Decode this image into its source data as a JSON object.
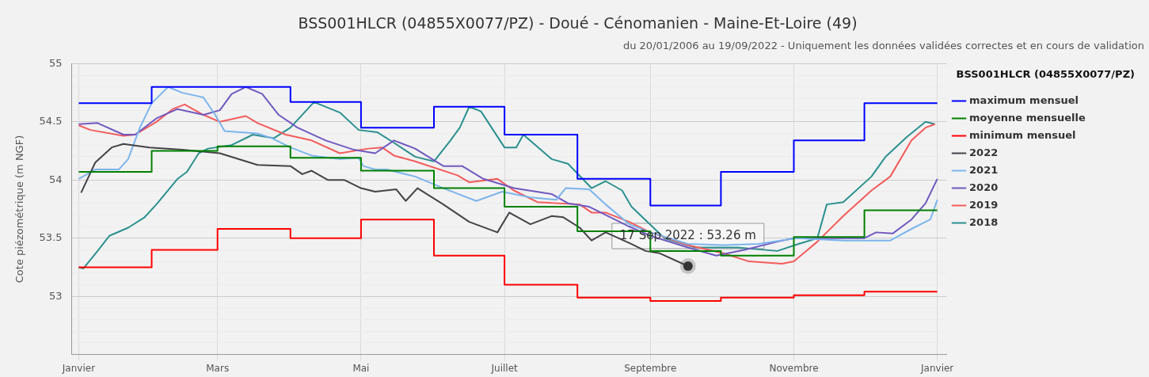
{
  "chart_data": {
    "type": "line",
    "title": "BSS001HLCR (04855X0077/PZ) - Doué - Cénomanien - Maine-Et-Loire (49)",
    "subtitle": "du 20/01/2006 au 19/09/2022 - Uniquement les données validées correctes et en cours de validation",
    "ylabel": "Cote piézométrique (m NGF)",
    "legend_title": "BSS001HLCR (04855X0077/PZ)",
    "legend": "right",
    "grid": true,
    "marker": "none",
    "line_style": "solid",
    "xlim": [
      "2021-12-29",
      "2023-01-05"
    ],
    "xticks": [
      {
        "value": "2022-01-01",
        "label": "Janvier"
      },
      {
        "value": "2022-03-01",
        "label": "Mars"
      },
      {
        "value": "2022-05-01",
        "label": "Mai"
      },
      {
        "value": "2022-07-01",
        "label": "Juillet"
      },
      {
        "value": "2022-09-01",
        "label": "Septembre"
      },
      {
        "value": "2022-11-01",
        "label": "Novembre"
      },
      {
        "value": "2023-01-01",
        "label": "Janvier"
      }
    ],
    "ylim": [
      52.5,
      55
    ],
    "yticks": [
      {
        "value": 52.6,
        "label": null
      },
      {
        "value": 52.7,
        "label": null
      },
      {
        "value": 52.8,
        "label": null
      },
      {
        "value": 52.9,
        "label": null
      },
      53,
      {
        "value": 53.1,
        "label": null
      },
      {
        "value": 53.2,
        "label": null
      },
      {
        "value": 53.3,
        "label": null
      },
      {
        "value": 53.4,
        "label": null
      },
      53.5,
      {
        "value": 53.6,
        "label": null
      },
      {
        "value": 53.7,
        "label": null
      },
      {
        "value": 53.8,
        "label": null
      },
      {
        "value": 53.9,
        "label": null
      },
      54,
      {
        "value": 54.1,
        "label": null
      },
      {
        "value": 54.2,
        "label": null
      },
      {
        "value": 54.3,
        "label": null
      },
      {
        "value": 54.4,
        "label": null
      },
      54.5,
      {
        "value": 54.6,
        "label": null
      },
      {
        "value": 54.7,
        "label": null
      },
      {
        "value": 54.8,
        "label": null
      },
      {
        "value": 54.9,
        "label": null
      },
      55
    ],
    "annotations": [
      {
        "text": "17 Sep 2022 : 53.26 m",
        "x": "2022-09-17",
        "y": 53.26
      }
    ],
    "series": [
      {
        "name": "maximum mensuel",
        "type": "step",
        "color": "#0000ff",
        "x": [
          "2022-01-01",
          "2022-02-01",
          "2022-03-01",
          "2022-04-01",
          "2022-05-01",
          "2022-06-01",
          "2022-07-01",
          "2022-08-01",
          "2022-09-01",
          "2022-10-01",
          "2022-11-01",
          "2022-12-01",
          "2023-01-01"
        ],
        "values": [
          54.66,
          54.8,
          54.8,
          54.67,
          54.45,
          54.63,
          54.39,
          54.01,
          53.78,
          54.07,
          54.34,
          54.66,
          54.66
        ]
      },
      {
        "name": "moyenne mensuelle",
        "type": "step",
        "color": "#008000",
        "x": [
          "2022-01-01",
          "2022-02-01",
          "2022-03-01",
          "2022-04-01",
          "2022-05-01",
          "2022-06-01",
          "2022-07-01",
          "2022-08-01",
          "2022-09-01",
          "2022-10-01",
          "2022-11-01",
          "2022-12-01",
          "2023-01-01"
        ],
        "values": [
          54.07,
          54.25,
          54.29,
          54.19,
          54.08,
          53.93,
          53.77,
          53.56,
          53.39,
          53.35,
          53.51,
          53.74,
          53.74
        ]
      },
      {
        "name": "minimum mensuel",
        "type": "step",
        "color": "#ff0000",
        "x": [
          "2022-01-01",
          "2022-02-01",
          "2022-03-01",
          "2022-04-01",
          "2022-05-01",
          "2022-06-01",
          "2022-07-01",
          "2022-08-01",
          "2022-09-01",
          "2022-10-01",
          "2022-11-01",
          "2022-12-01",
          "2023-01-01"
        ],
        "values": [
          53.25,
          53.4,
          53.58,
          53.5,
          53.66,
          53.35,
          53.1,
          52.99,
          52.96,
          52.99,
          53.01,
          53.04,
          53.04
        ]
      },
      {
        "name": "2022",
        "type": "line",
        "color": "#434348",
        "x": [
          "2022-01-02",
          "2022-01-08",
          "2022-01-15",
          "2022-01-20",
          "2022-01-31",
          "2022-02-14",
          "2022-03-02",
          "2022-03-18",
          "2022-04-01",
          "2022-04-06",
          "2022-04-10",
          "2022-04-17",
          "2022-04-24",
          "2022-05-01",
          "2022-05-07",
          "2022-05-16",
          "2022-05-20",
          "2022-05-25",
          "2022-06-05",
          "2022-06-16",
          "2022-06-28",
          "2022-07-03",
          "2022-07-12",
          "2022-07-21",
          "2022-07-26",
          "2022-08-02",
          "2022-08-07",
          "2022-08-13",
          "2022-08-24",
          "2022-08-30",
          "2022-09-05",
          "2022-09-17"
        ],
        "values": [
          53.89,
          54.15,
          54.28,
          54.31,
          54.28,
          54.26,
          54.23,
          54.13,
          54.12,
          54.05,
          54.08,
          54.0,
          54.0,
          53.93,
          53.9,
          53.92,
          53.82,
          53.93,
          53.79,
          53.64,
          53.55,
          53.72,
          53.62,
          53.69,
          53.68,
          53.59,
          53.48,
          53.55,
          53.45,
          53.39,
          53.37,
          53.26
        ]
      },
      {
        "name": "2021",
        "type": "line",
        "color": "#7cb5ec",
        "x": [
          "2022-01-01",
          "2022-01-08",
          "2022-01-18",
          "2022-01-22",
          "2022-01-27",
          "2022-02-01",
          "2022-02-08",
          "2022-02-14",
          "2022-02-23",
          "2022-02-28",
          "2022-03-04",
          "2022-03-18",
          "2022-03-24",
          "2022-04-01",
          "2022-04-10",
          "2022-04-22",
          "2022-04-30",
          "2022-05-02",
          "2022-05-07",
          "2022-05-12",
          "2022-05-24",
          "2022-06-05",
          "2022-06-19",
          "2022-06-30",
          "2022-07-12",
          "2022-07-23",
          "2022-07-27",
          "2022-08-06",
          "2022-08-13",
          "2022-08-23",
          "2022-09-01",
          "2022-09-17",
          "2022-10-02",
          "2022-10-17",
          "2022-11-02",
          "2022-11-22",
          "2022-12-12",
          "2022-12-22",
          "2022-12-29",
          "2023-01-01"
        ],
        "values": [
          54.01,
          54.09,
          54.09,
          54.18,
          54.45,
          54.66,
          54.8,
          54.75,
          54.71,
          54.56,
          54.42,
          54.4,
          54.36,
          54.28,
          54.21,
          54.18,
          54.19,
          54.12,
          54.09,
          54.09,
          54.03,
          53.93,
          53.82,
          53.9,
          53.85,
          53.83,
          53.93,
          53.92,
          53.79,
          53.62,
          53.55,
          53.45,
          53.44,
          53.45,
          53.5,
          53.48,
          53.48,
          53.59,
          53.66,
          53.83
        ]
      },
      {
        "name": "2020",
        "type": "line",
        "color": "#7059c0",
        "x": [
          "2022-01-01",
          "2022-01-09",
          "2022-01-20",
          "2022-01-25",
          "2022-02-03",
          "2022-02-12",
          "2022-02-23",
          "2022-03-02",
          "2022-03-07",
          "2022-03-13",
          "2022-03-20",
          "2022-03-27",
          "2022-04-04",
          "2022-04-16",
          "2022-04-28",
          "2022-05-07",
          "2022-05-15",
          "2022-05-24",
          "2022-06-05",
          "2022-06-13",
          "2022-06-22",
          "2022-07-05",
          "2022-07-21",
          "2022-07-28",
          "2022-08-06",
          "2022-08-13",
          "2022-08-23",
          "2022-09-01",
          "2022-09-17",
          "2022-09-29",
          "2022-10-11",
          "2022-10-25",
          "2022-11-01",
          "2022-12-01",
          "2022-12-06",
          "2022-12-13",
          "2022-12-21",
          "2022-12-27",
          "2023-01-01"
        ],
        "values": [
          54.48,
          54.49,
          54.39,
          54.39,
          54.53,
          54.61,
          54.56,
          54.6,
          54.74,
          54.8,
          54.74,
          54.56,
          54.45,
          54.34,
          54.26,
          54.23,
          54.34,
          54.27,
          54.12,
          54.12,
          54.01,
          53.93,
          53.88,
          53.8,
          53.77,
          53.7,
          53.6,
          53.52,
          53.42,
          53.35,
          53.4,
          53.47,
          53.5,
          53.5,
          53.55,
          53.54,
          53.66,
          53.8,
          54.01
        ]
      },
      {
        "name": "2019",
        "type": "line",
        "color": "#f45b5b",
        "x": [
          "2022-01-01",
          "2022-01-06",
          "2022-01-20",
          "2022-01-25",
          "2022-02-03",
          "2022-02-10",
          "2022-02-15",
          "2022-02-23",
          "2022-03-02",
          "2022-03-13",
          "2022-03-18",
          "2022-03-30",
          "2022-04-10",
          "2022-04-22",
          "2022-05-04",
          "2022-05-10",
          "2022-05-15",
          "2022-05-24",
          "2022-06-11",
          "2022-06-16",
          "2022-06-28",
          "2022-07-05",
          "2022-07-15",
          "2022-08-02",
          "2022-08-07",
          "2022-08-13",
          "2022-08-23",
          "2022-09-01",
          "2022-09-17",
          "2022-10-02",
          "2022-10-13",
          "2022-10-27",
          "2022-11-01",
          "2022-11-11",
          "2022-11-22",
          "2022-12-04",
          "2022-12-12",
          "2022-12-21",
          "2022-12-27",
          "2022-12-31"
        ],
        "values": [
          54.47,
          54.43,
          54.38,
          54.39,
          54.5,
          54.61,
          54.65,
          54.56,
          54.5,
          54.55,
          54.49,
          54.39,
          54.34,
          54.23,
          54.27,
          54.28,
          54.21,
          54.16,
          54.04,
          53.98,
          54.01,
          53.91,
          53.81,
          53.79,
          53.72,
          53.72,
          53.64,
          53.55,
          53.44,
          53.37,
          53.3,
          53.28,
          53.3,
          53.47,
          53.69,
          53.91,
          54.03,
          54.34,
          54.45,
          54.48
        ]
      },
      {
        "name": "2018",
        "type": "line",
        "color": "#2b908f",
        "x": [
          "2022-01-01",
          "2022-01-03",
          "2022-01-09",
          "2022-01-14",
          "2022-01-22",
          "2022-01-29",
          "2022-02-03",
          "2022-02-12",
          "2022-02-16",
          "2022-02-21",
          "2022-02-25",
          "2022-03-07",
          "2022-03-16",
          "2022-03-25",
          "2022-04-01",
          "2022-04-11",
          "2022-04-22",
          "2022-04-30",
          "2022-05-08",
          "2022-05-15",
          "2022-05-24",
          "2022-06-01",
          "2022-06-08",
          "2022-06-12",
          "2022-06-16",
          "2022-06-21",
          "2022-07-01",
          "2022-07-06",
          "2022-07-09",
          "2022-07-21",
          "2022-07-28",
          "2022-08-07",
          "2022-08-13",
          "2022-08-20",
          "2022-08-24",
          "2022-09-07",
          "2022-09-20",
          "2022-10-08",
          "2022-10-25",
          "2022-11-03",
          "2022-11-11",
          "2022-11-15",
          "2022-11-22",
          "2022-12-04",
          "2022-12-10",
          "2022-12-19",
          "2022-12-27",
          "2022-12-31"
        ],
        "values": [
          53.25,
          53.24,
          53.39,
          53.52,
          53.59,
          53.68,
          53.79,
          54.01,
          54.07,
          54.23,
          54.27,
          54.3,
          54.39,
          54.36,
          54.45,
          54.67,
          54.58,
          54.43,
          54.41,
          54.32,
          54.2,
          54.16,
          54.34,
          54.45,
          54.63,
          54.59,
          54.28,
          54.28,
          54.39,
          54.18,
          54.14,
          53.93,
          53.99,
          53.91,
          53.77,
          53.5,
          53.42,
          53.42,
          53.39,
          53.45,
          53.5,
          53.79,
          53.81,
          54.03,
          54.2,
          54.37,
          54.5,
          54.48
        ]
      }
    ]
  }
}
